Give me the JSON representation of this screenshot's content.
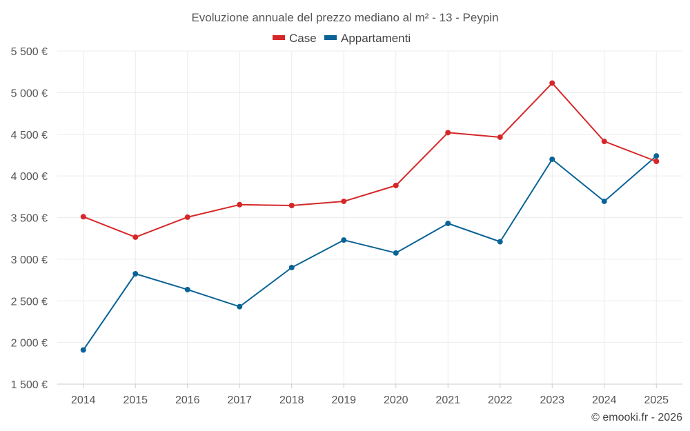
{
  "chart_data": {
    "type": "line",
    "title": "Evoluzione annuale del prezzo mediano al m² - 13 - Peypin",
    "xlabel": "",
    "ylabel": "",
    "x": [
      "2014",
      "2015",
      "2016",
      "2017",
      "2018",
      "2019",
      "2020",
      "2021",
      "2022",
      "2023",
      "2024",
      "2025"
    ],
    "ylim": [
      1500,
      5500
    ],
    "yticks": [
      1500,
      2000,
      2500,
      3000,
      3500,
      4000,
      4500,
      5000,
      5500
    ],
    "ytick_labels": [
      "1 500 €",
      "2 000 €",
      "2 500 €",
      "3 000 €",
      "3 500 €",
      "4 000 €",
      "4 500 €",
      "5 000 €",
      "5 500 €"
    ],
    "grid": true,
    "legend_position": "top-center",
    "series": [
      {
        "name": "Case",
        "color": "#d62728",
        "values": [
          3510,
          3265,
          3505,
          3655,
          3645,
          3695,
          3885,
          4520,
          4465,
          5115,
          4415,
          4175
        ]
      },
      {
        "name": "Appartamenti",
        "color": "#0a6396",
        "values": [
          1910,
          2825,
          2635,
          2430,
          2900,
          3230,
          3075,
          3430,
          3210,
          4200,
          3695,
          4240
        ]
      }
    ]
  },
  "credit": "© emooki.fr - 2026"
}
